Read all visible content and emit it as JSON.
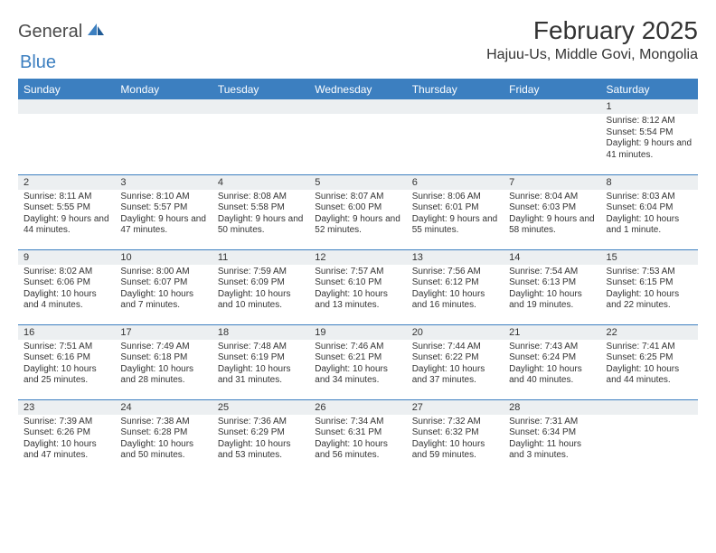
{
  "logo": {
    "text1": "General",
    "text2": "Blue"
  },
  "title": "February 2025",
  "location": "Hajuu-Us, Middle Govi, Mongolia",
  "colors": {
    "accent": "#3c7fc0",
    "header_bg": "#3c7fc0",
    "header_text": "#ffffff",
    "daynum_bg": "#eceff1",
    "text": "#333333",
    "logo_gray": "#4a4a4a"
  },
  "dayHeaders": [
    "Sunday",
    "Monday",
    "Tuesday",
    "Wednesday",
    "Thursday",
    "Friday",
    "Saturday"
  ],
  "weeks": [
    [
      {
        "n": "",
        "lines": []
      },
      {
        "n": "",
        "lines": []
      },
      {
        "n": "",
        "lines": []
      },
      {
        "n": "",
        "lines": []
      },
      {
        "n": "",
        "lines": []
      },
      {
        "n": "",
        "lines": []
      },
      {
        "n": "1",
        "lines": [
          "Sunrise: 8:12 AM",
          "Sunset: 5:54 PM",
          "Daylight: 9 hours and 41 minutes."
        ]
      }
    ],
    [
      {
        "n": "2",
        "lines": [
          "Sunrise: 8:11 AM",
          "Sunset: 5:55 PM",
          "Daylight: 9 hours and 44 minutes."
        ]
      },
      {
        "n": "3",
        "lines": [
          "Sunrise: 8:10 AM",
          "Sunset: 5:57 PM",
          "Daylight: 9 hours and 47 minutes."
        ]
      },
      {
        "n": "4",
        "lines": [
          "Sunrise: 8:08 AM",
          "Sunset: 5:58 PM",
          "Daylight: 9 hours and 50 minutes."
        ]
      },
      {
        "n": "5",
        "lines": [
          "Sunrise: 8:07 AM",
          "Sunset: 6:00 PM",
          "Daylight: 9 hours and 52 minutes."
        ]
      },
      {
        "n": "6",
        "lines": [
          "Sunrise: 8:06 AM",
          "Sunset: 6:01 PM",
          "Daylight: 9 hours and 55 minutes."
        ]
      },
      {
        "n": "7",
        "lines": [
          "Sunrise: 8:04 AM",
          "Sunset: 6:03 PM",
          "Daylight: 9 hours and 58 minutes."
        ]
      },
      {
        "n": "8",
        "lines": [
          "Sunrise: 8:03 AM",
          "Sunset: 6:04 PM",
          "Daylight: 10 hours and 1 minute."
        ]
      }
    ],
    [
      {
        "n": "9",
        "lines": [
          "Sunrise: 8:02 AM",
          "Sunset: 6:06 PM",
          "Daylight: 10 hours and 4 minutes."
        ]
      },
      {
        "n": "10",
        "lines": [
          "Sunrise: 8:00 AM",
          "Sunset: 6:07 PM",
          "Daylight: 10 hours and 7 minutes."
        ]
      },
      {
        "n": "11",
        "lines": [
          "Sunrise: 7:59 AM",
          "Sunset: 6:09 PM",
          "Daylight: 10 hours and 10 minutes."
        ]
      },
      {
        "n": "12",
        "lines": [
          "Sunrise: 7:57 AM",
          "Sunset: 6:10 PM",
          "Daylight: 10 hours and 13 minutes."
        ]
      },
      {
        "n": "13",
        "lines": [
          "Sunrise: 7:56 AM",
          "Sunset: 6:12 PM",
          "Daylight: 10 hours and 16 minutes."
        ]
      },
      {
        "n": "14",
        "lines": [
          "Sunrise: 7:54 AM",
          "Sunset: 6:13 PM",
          "Daylight: 10 hours and 19 minutes."
        ]
      },
      {
        "n": "15",
        "lines": [
          "Sunrise: 7:53 AM",
          "Sunset: 6:15 PM",
          "Daylight: 10 hours and 22 minutes."
        ]
      }
    ],
    [
      {
        "n": "16",
        "lines": [
          "Sunrise: 7:51 AM",
          "Sunset: 6:16 PM",
          "Daylight: 10 hours and 25 minutes."
        ]
      },
      {
        "n": "17",
        "lines": [
          "Sunrise: 7:49 AM",
          "Sunset: 6:18 PM",
          "Daylight: 10 hours and 28 minutes."
        ]
      },
      {
        "n": "18",
        "lines": [
          "Sunrise: 7:48 AM",
          "Sunset: 6:19 PM",
          "Daylight: 10 hours and 31 minutes."
        ]
      },
      {
        "n": "19",
        "lines": [
          "Sunrise: 7:46 AM",
          "Sunset: 6:21 PM",
          "Daylight: 10 hours and 34 minutes."
        ]
      },
      {
        "n": "20",
        "lines": [
          "Sunrise: 7:44 AM",
          "Sunset: 6:22 PM",
          "Daylight: 10 hours and 37 minutes."
        ]
      },
      {
        "n": "21",
        "lines": [
          "Sunrise: 7:43 AM",
          "Sunset: 6:24 PM",
          "Daylight: 10 hours and 40 minutes."
        ]
      },
      {
        "n": "22",
        "lines": [
          "Sunrise: 7:41 AM",
          "Sunset: 6:25 PM",
          "Daylight: 10 hours and 44 minutes."
        ]
      }
    ],
    [
      {
        "n": "23",
        "lines": [
          "Sunrise: 7:39 AM",
          "Sunset: 6:26 PM",
          "Daylight: 10 hours and 47 minutes."
        ]
      },
      {
        "n": "24",
        "lines": [
          "Sunrise: 7:38 AM",
          "Sunset: 6:28 PM",
          "Daylight: 10 hours and 50 minutes."
        ]
      },
      {
        "n": "25",
        "lines": [
          "Sunrise: 7:36 AM",
          "Sunset: 6:29 PM",
          "Daylight: 10 hours and 53 minutes."
        ]
      },
      {
        "n": "26",
        "lines": [
          "Sunrise: 7:34 AM",
          "Sunset: 6:31 PM",
          "Daylight: 10 hours and 56 minutes."
        ]
      },
      {
        "n": "27",
        "lines": [
          "Sunrise: 7:32 AM",
          "Sunset: 6:32 PM",
          "Daylight: 10 hours and 59 minutes."
        ]
      },
      {
        "n": "28",
        "lines": [
          "Sunrise: 7:31 AM",
          "Sunset: 6:34 PM",
          "Daylight: 11 hours and 3 minutes."
        ]
      },
      {
        "n": "",
        "lines": []
      }
    ]
  ]
}
